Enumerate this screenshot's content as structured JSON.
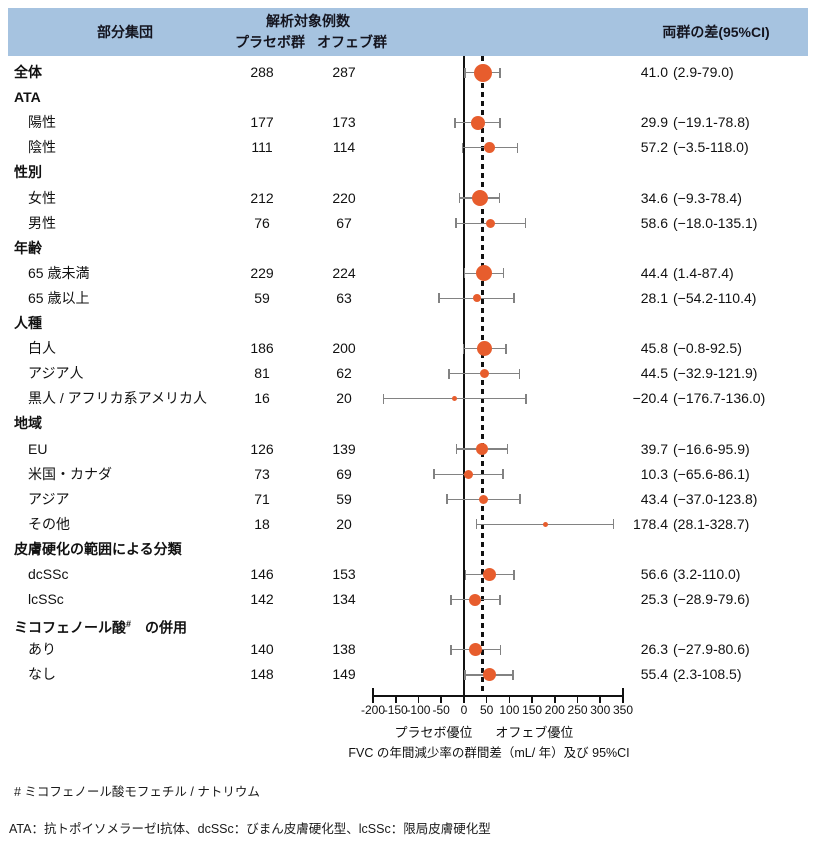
{
  "header": {
    "subgroup": "部分集団",
    "n_title": "解析対象例数",
    "placebo_group": "プラセボ群",
    "ofev_group": "オフェブ群",
    "diff_title": "両群の差(95%CI)"
  },
  "chart_data": {
    "type": "forest",
    "title": "",
    "xlabel": "FVC の年間減少率の群間差（mL/ 年）及び 95%CI",
    "axis": {
      "min": -200,
      "max": 350,
      "ticks": [
        -200,
        -150,
        -100,
        -50,
        0,
        50,
        100,
        150,
        200,
        250,
        300,
        350
      ],
      "tick_labels": [
        "-200",
        "-150",
        "-100",
        "-50",
        "0",
        "50",
        "100",
        "150",
        "200",
        "250",
        "300",
        "350"
      ],
      "zero_line": 0,
      "overall_dashed_line": 41.0,
      "favor_left": "プラセボ優位",
      "favor_right": "オフェブ優位"
    },
    "rows": [
      {
        "kind": "data",
        "label": "全体",
        "bold": true,
        "indent": 0,
        "placebo": "288",
        "ofev": "287",
        "est": 41.0,
        "lo": 2.9,
        "hi": 79.0,
        "diff": "41.0",
        "ci": "(2.9-79.0)"
      },
      {
        "kind": "section",
        "label": "ATA"
      },
      {
        "kind": "data",
        "label": "陽性",
        "indent": 1,
        "placebo": "177",
        "ofev": "173",
        "est": 29.9,
        "lo": -19.1,
        "hi": 78.8,
        "diff": "29.9",
        "ci": "(−19.1-78.8)"
      },
      {
        "kind": "data",
        "label": "陰性",
        "indent": 1,
        "placebo": "111",
        "ofev": "114",
        "est": 57.2,
        "lo": -3.5,
        "hi": 118.0,
        "diff": "57.2",
        "ci": "(−3.5-118.0)"
      },
      {
        "kind": "section",
        "label": "性別"
      },
      {
        "kind": "data",
        "label": "女性",
        "indent": 1,
        "placebo": "212",
        "ofev": "220",
        "est": 34.6,
        "lo": -9.3,
        "hi": 78.4,
        "diff": "34.6",
        "ci": "(−9.3-78.4)"
      },
      {
        "kind": "data",
        "label": "男性",
        "indent": 1,
        "placebo": "76",
        "ofev": "67",
        "est": 58.6,
        "lo": -18.0,
        "hi": 135.1,
        "diff": "58.6",
        "ci": "(−18.0-135.1)"
      },
      {
        "kind": "section",
        "label": "年齢"
      },
      {
        "kind": "data",
        "label": "65 歳未満",
        "indent": 1,
        "placebo": "229",
        "ofev": "224",
        "est": 44.4,
        "lo": 1.4,
        "hi": 87.4,
        "diff": "44.4",
        "ci": "(1.4-87.4)"
      },
      {
        "kind": "data",
        "label": "65 歳以上",
        "indent": 1,
        "placebo": "59",
        "ofev": "63",
        "est": 28.1,
        "lo": -54.2,
        "hi": 110.4,
        "diff": "28.1",
        "ci": "(−54.2-110.4)"
      },
      {
        "kind": "section",
        "label": "人種"
      },
      {
        "kind": "data",
        "label": "白人",
        "indent": 1,
        "placebo": "186",
        "ofev": "200",
        "est": 45.8,
        "lo": -0.8,
        "hi": 92.5,
        "diff": "45.8",
        "ci": "(−0.8-92.5)"
      },
      {
        "kind": "data",
        "label": "アジア人",
        "indent": 1,
        "placebo": "81",
        "ofev": "62",
        "est": 44.5,
        "lo": -32.9,
        "hi": 121.9,
        "diff": "44.5",
        "ci": "(−32.9-121.9)"
      },
      {
        "kind": "data",
        "label": "黒人 / アフリカ系アメリカ人",
        "indent": 1,
        "placebo": "16",
        "ofev": "20",
        "est": -20.4,
        "lo": -176.7,
        "hi": 136.0,
        "diff": "−20.4",
        "ci": "(−176.7-136.0)"
      },
      {
        "kind": "section",
        "label": "地域"
      },
      {
        "kind": "data",
        "label": "EU",
        "indent": 1,
        "placebo": "126",
        "ofev": "139",
        "est": 39.7,
        "lo": -16.6,
        "hi": 95.9,
        "diff": "39.7",
        "ci": "(−16.6-95.9)"
      },
      {
        "kind": "data",
        "label": "米国・カナダ",
        "indent": 1,
        "placebo": "73",
        "ofev": "69",
        "est": 10.3,
        "lo": -65.6,
        "hi": 86.1,
        "diff": "10.3",
        "ci": "(−65.6-86.1)"
      },
      {
        "kind": "data",
        "label": "アジア",
        "indent": 1,
        "placebo": "71",
        "ofev": "59",
        "est": 43.4,
        "lo": -37.0,
        "hi": 123.8,
        "diff": "43.4",
        "ci": "(−37.0-123.8)"
      },
      {
        "kind": "data",
        "label": "その他",
        "indent": 1,
        "placebo": "18",
        "ofev": "20",
        "est": 178.4,
        "lo": 28.1,
        "hi": 328.7,
        "diff": "178.4",
        "ci": "(28.1-328.7)"
      },
      {
        "kind": "section",
        "label": "皮膚硬化の範囲による分類"
      },
      {
        "kind": "data",
        "label": "dcSSc",
        "indent": 1,
        "placebo": "146",
        "ofev": "153",
        "est": 56.6,
        "lo": 3.2,
        "hi": 110.0,
        "diff": "56.6",
        "ci": "(3.2-110.0)"
      },
      {
        "kind": "data",
        "label": "lcSSc",
        "indent": 1,
        "placebo": "142",
        "ofev": "134",
        "est": 25.3,
        "lo": -28.9,
        "hi": 79.6,
        "diff": "25.3",
        "ci": "(−28.9-79.6)"
      },
      {
        "kind": "section",
        "label": "ミコフェノール酸",
        "sup": "#",
        "tail": "　の併用"
      },
      {
        "kind": "data",
        "label": "あり",
        "indent": 1,
        "placebo": "140",
        "ofev": "138",
        "est": 26.3,
        "lo": -27.9,
        "hi": 80.6,
        "diff": "26.3",
        "ci": "(−27.9-80.6)"
      },
      {
        "kind": "data",
        "label": "なし",
        "indent": 1,
        "placebo": "148",
        "ofev": "149",
        "est": 55.4,
        "lo": 2.3,
        "hi": 108.5,
        "diff": "55.4",
        "ci": "(2.3-108.5)"
      }
    ]
  },
  "footnotes": {
    "note1": "# ミコフェノール酸モフェチル / ナトリウム",
    "note2": "ATA：抗トポイソメラーゼⅠ抗体、dcSSc：びまん皮膚硬化型、lcSSc：限局皮膚硬化型"
  },
  "colors": {
    "header_band": "#a6c3e0",
    "marker": "#e75d2d",
    "error_bar": "#828282",
    "reference_line": "#111111"
  }
}
